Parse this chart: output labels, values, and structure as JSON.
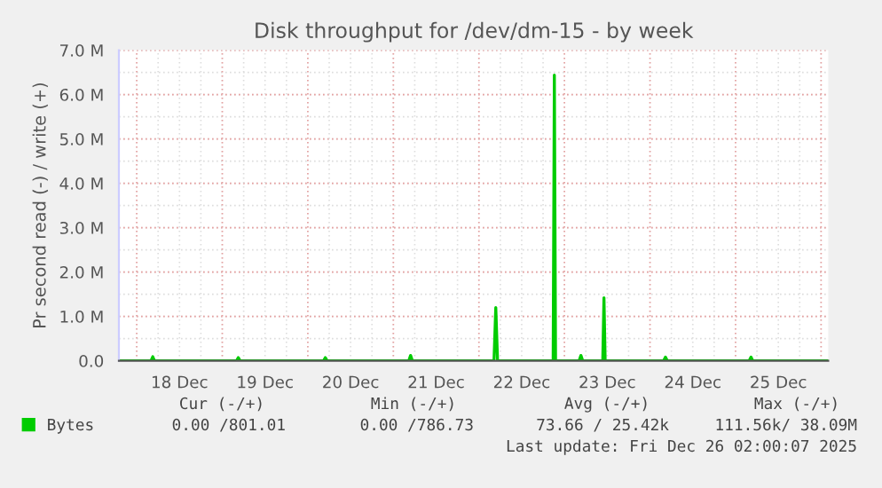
{
  "chart_data": {
    "type": "line",
    "title": "Disk throughput for /dev/dm-15 - by week",
    "ylabel": "Pr second read (-) / write (+)",
    "x": [
      "2025-12-17T19:00",
      "2025-12-18T04:00",
      "2025-12-18T04:30",
      "2025-12-18T05:00",
      "2025-12-19T04:00",
      "2025-12-19T04:30",
      "2025-12-19T05:00",
      "2025-12-20T04:25",
      "2025-12-20T04:55",
      "2025-12-20T05:25",
      "2025-12-21T04:20",
      "2025-12-21T04:50",
      "2025-12-21T05:20",
      "2025-12-22T04:14",
      "2025-12-22T04:44",
      "2025-12-22T05:14",
      "2025-12-22T20:50",
      "2025-12-22T21:10",
      "2025-12-22T21:30",
      "2025-12-23T04:07",
      "2025-12-23T04:37",
      "2025-12-23T05:07",
      "2025-12-23T10:45",
      "2025-12-23T11:05",
      "2025-12-23T11:25",
      "2025-12-24T03:50",
      "2025-12-24T04:20",
      "2025-12-24T04:50",
      "2025-12-25T03:50",
      "2025-12-25T04:20",
      "2025-12-25T04:50",
      "2025-12-26T02:00"
    ],
    "series": [
      {
        "name": "Bytes",
        "color": "#00cc00",
        "values": [
          0,
          0,
          90000,
          0,
          0,
          70000,
          0,
          0,
          70000,
          0,
          0,
          120000,
          0,
          0,
          1200000,
          0,
          0,
          6440000,
          0,
          0,
          120000,
          0,
          0,
          1420000,
          0,
          0,
          80000,
          0,
          0,
          80000,
          0,
          0
        ]
      }
    ],
    "xlim": [
      "2025-12-17T19:00",
      "2025-12-26T02:00"
    ],
    "xticks": [
      {
        "value": "2025-12-18T00:00",
        "label": null
      },
      {
        "value": "2025-12-19T00:00",
        "label": null
      },
      {
        "value": "2025-12-20T00:00",
        "label": null
      },
      {
        "value": "2025-12-21T00:00",
        "label": null
      },
      {
        "value": "2025-12-22T00:00",
        "label": null
      },
      {
        "value": "2025-12-23T00:00",
        "label": null
      },
      {
        "value": "2025-12-24T00:00",
        "label": null
      },
      {
        "value": "2025-12-25T00:00",
        "label": null
      },
      {
        "value": "2025-12-26T00:00",
        "label": null
      },
      {
        "value": "2025-12-18T12:00",
        "label": "18 Dec"
      },
      {
        "value": "2025-12-19T12:00",
        "label": "19 Dec"
      },
      {
        "value": "2025-12-20T12:00",
        "label": "20 Dec"
      },
      {
        "value": "2025-12-21T12:00",
        "label": "21 Dec"
      },
      {
        "value": "2025-12-22T12:00",
        "label": "22 Dec"
      },
      {
        "value": "2025-12-23T12:00",
        "label": "23 Dec"
      },
      {
        "value": "2025-12-24T12:00",
        "label": "24 Dec"
      },
      {
        "value": "2025-12-25T12:00",
        "label": "25 Dec"
      }
    ],
    "ylim": [
      0,
      7000000
    ],
    "yticks": [
      {
        "value": 0,
        "label": "0.0"
      },
      {
        "value": 1000000,
        "label": "1.0 M"
      },
      {
        "value": 2000000,
        "label": "2.0 M"
      },
      {
        "value": 3000000,
        "label": "3.0 M"
      },
      {
        "value": 4000000,
        "label": "4.0 M"
      },
      {
        "value": 5000000,
        "label": "5.0 M"
      },
      {
        "value": 6000000,
        "label": "6.0 M"
      },
      {
        "value": 7000000,
        "label": "7.0 M"
      }
    ],
    "grid": true,
    "legend": "bottom left",
    "annotations": [
      "Cur (-/+)",
      "Min (-/+)",
      "Avg (-/+)",
      "Max (-/+)",
      "0.00 /801.01",
      "0.00 /786.73",
      "73.66 / 25.42k",
      "111.56k/ 38.09M",
      "Last update: Fri Dec 26 02:00:07 2025"
    ]
  }
}
